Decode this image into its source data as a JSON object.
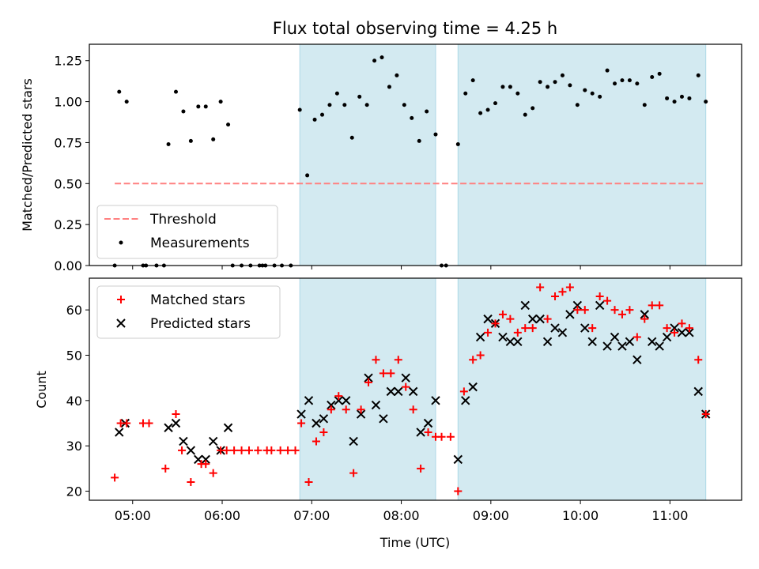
{
  "chart_data": {
    "type": "scatter",
    "title": "Flux total observing time = 4.25 h",
    "xlabel": "Time (UTC)",
    "x_ticks": [
      "05:00",
      "06:00",
      "07:00",
      "08:00",
      "09:00",
      "10:00",
      "11:00"
    ],
    "x_range": [
      "04:31",
      "11:48"
    ],
    "shaded_intervals": [
      [
        "06:52",
        "08:23"
      ],
      [
        "08:38",
        "11:24"
      ]
    ],
    "shade_color": "#d3eaf1",
    "top": {
      "ylabel": "Matched/Predicted stars",
      "ylim": [
        0,
        1.35
      ],
      "y_ticks": [
        "0.00",
        "0.25",
        "0.50",
        "0.75",
        "1.00",
        "1.25"
      ],
      "threshold": {
        "label": "Threshold",
        "value": 0.5,
        "color": "#ff8080",
        "from": "04:48",
        "to": "11:24"
      },
      "measurements_label": "Measurements",
      "measurements": [
        [
          "04:48",
          0
        ],
        [
          "04:51",
          1.06
        ],
        [
          "04:56",
          1.0
        ],
        [
          "05:07",
          0
        ],
        [
          "05:09",
          0
        ],
        [
          "05:16",
          0
        ],
        [
          "05:21",
          0
        ],
        [
          "05:24",
          0.74
        ],
        [
          "05:29",
          1.06
        ],
        [
          "05:34",
          0.94
        ],
        [
          "05:39",
          0.76
        ],
        [
          "05:44",
          0.97
        ],
        [
          "05:49",
          0.97
        ],
        [
          "05:54",
          0.77
        ],
        [
          "05:59",
          1.0
        ],
        [
          "06:04",
          0.86
        ],
        [
          "06:07",
          0
        ],
        [
          "06:13",
          0
        ],
        [
          "06:19",
          0
        ],
        [
          "06:25",
          0
        ],
        [
          "06:27",
          0
        ],
        [
          "06:29",
          0
        ],
        [
          "06:35",
          0
        ],
        [
          "06:40",
          0
        ],
        [
          "06:46",
          0
        ],
        [
          "06:52",
          0.95
        ],
        [
          "06:57",
          0.55
        ],
        [
          "07:02",
          0.89
        ],
        [
          "07:07",
          0.92
        ],
        [
          "07:12",
          0.98
        ],
        [
          "07:17",
          1.05
        ],
        [
          "07:22",
          0.98
        ],
        [
          "07:27",
          0.78
        ],
        [
          "07:32",
          1.03
        ],
        [
          "07:37",
          0.98
        ],
        [
          "07:42",
          1.25
        ],
        [
          "07:47",
          1.27
        ],
        [
          "07:52",
          1.09
        ],
        [
          "07:57",
          1.16
        ],
        [
          "08:02",
          0.98
        ],
        [
          "08:07",
          0.9
        ],
        [
          "08:12",
          0.76
        ],
        [
          "08:17",
          0.94
        ],
        [
          "08:23",
          0.8
        ],
        [
          "08:27",
          0
        ],
        [
          "08:30",
          0
        ],
        [
          "08:38",
          0.74
        ],
        [
          "08:43",
          1.05
        ],
        [
          "08:48",
          1.13
        ],
        [
          "08:53",
          0.93
        ],
        [
          "08:58",
          0.95
        ],
        [
          "09:03",
          0.99
        ],
        [
          "09:08",
          1.09
        ],
        [
          "09:13",
          1.09
        ],
        [
          "09:18",
          1.05
        ],
        [
          "09:23",
          0.92
        ],
        [
          "09:28",
          0.96
        ],
        [
          "09:33",
          1.12
        ],
        [
          "09:38",
          1.09
        ],
        [
          "09:43",
          1.12
        ],
        [
          "09:48",
          1.16
        ],
        [
          "09:53",
          1.1
        ],
        [
          "09:58",
          0.98
        ],
        [
          "10:03",
          1.07
        ],
        [
          "10:08",
          1.05
        ],
        [
          "10:13",
          1.03
        ],
        [
          "10:18",
          1.19
        ],
        [
          "10:23",
          1.11
        ],
        [
          "10:28",
          1.13
        ],
        [
          "10:33",
          1.13
        ],
        [
          "10:38",
          1.11
        ],
        [
          "10:43",
          0.98
        ],
        [
          "10:48",
          1.15
        ],
        [
          "10:53",
          1.17
        ],
        [
          "10:58",
          1.02
        ],
        [
          "11:03",
          1.0
        ],
        [
          "11:08",
          1.03
        ],
        [
          "11:13",
          1.02
        ],
        [
          "11:19",
          1.16
        ],
        [
          "11:24",
          1.0
        ]
      ]
    },
    "bottom": {
      "ylabel": "Count",
      "ylim": [
        18,
        67
      ],
      "y_ticks": [
        "20",
        "30",
        "40",
        "50",
        "60"
      ],
      "series": [
        {
          "name": "Matched stars",
          "marker": "+",
          "color": "#ff0000",
          "points": [
            [
              "04:48",
              23
            ],
            [
              "04:52",
              35
            ],
            [
              "04:56",
              35
            ],
            [
              "05:07",
              35
            ],
            [
              "05:11",
              35
            ],
            [
              "05:22",
              25
            ],
            [
              "05:29",
              37
            ],
            [
              "05:33",
              29
            ],
            [
              "05:39",
              22
            ],
            [
              "05:46",
              26
            ],
            [
              "05:49",
              26
            ],
            [
              "05:54",
              24
            ],
            [
              "05:59",
              29
            ],
            [
              "06:03",
              29
            ],
            [
              "06:08",
              29
            ],
            [
              "06:13",
              29
            ],
            [
              "06:18",
              29
            ],
            [
              "06:24",
              29
            ],
            [
              "06:30",
              29
            ],
            [
              "06:33",
              29
            ],
            [
              "06:39",
              29
            ],
            [
              "06:44",
              29
            ],
            [
              "06:49",
              29
            ],
            [
              "06:53",
              35
            ],
            [
              "06:58",
              22
            ],
            [
              "07:03",
              31
            ],
            [
              "07:08",
              33
            ],
            [
              "07:13",
              38
            ],
            [
              "07:18",
              41
            ],
            [
              "07:23",
              38
            ],
            [
              "07:28",
              24
            ],
            [
              "07:33",
              38
            ],
            [
              "07:38",
              44
            ],
            [
              "07:43",
              49
            ],
            [
              "07:48",
              46
            ],
            [
              "07:53",
              46
            ],
            [
              "07:58",
              49
            ],
            [
              "08:03",
              43
            ],
            [
              "08:08",
              38
            ],
            [
              "08:13",
              25
            ],
            [
              "08:18",
              33
            ],
            [
              "08:23",
              32
            ],
            [
              "08:27",
              32
            ],
            [
              "08:33",
              32
            ],
            [
              "08:38",
              20
            ],
            [
              "08:42",
              42
            ],
            [
              "08:48",
              49
            ],
            [
              "08:53",
              50
            ],
            [
              "08:58",
              55
            ],
            [
              "09:03",
              57
            ],
            [
              "09:08",
              59
            ],
            [
              "09:13",
              58
            ],
            [
              "09:18",
              55
            ],
            [
              "09:23",
              56
            ],
            [
              "09:28",
              56
            ],
            [
              "09:33",
              65
            ],
            [
              "09:38",
              58
            ],
            [
              "09:43",
              63
            ],
            [
              "09:48",
              64
            ],
            [
              "09:53",
              65
            ],
            [
              "09:58",
              60
            ],
            [
              "10:03",
              60
            ],
            [
              "10:08",
              56
            ],
            [
              "10:13",
              63
            ],
            [
              "10:18",
              62
            ],
            [
              "10:23",
              60
            ],
            [
              "10:28",
              59
            ],
            [
              "10:33",
              60
            ],
            [
              "10:38",
              54
            ],
            [
              "10:43",
              58
            ],
            [
              "10:48",
              61
            ],
            [
              "10:53",
              61
            ],
            [
              "10:58",
              56
            ],
            [
              "11:03",
              55
            ],
            [
              "11:08",
              57
            ],
            [
              "11:13",
              56
            ],
            [
              "11:19",
              49
            ],
            [
              "11:24",
              37
            ]
          ]
        },
        {
          "name": "Predicted stars",
          "marker": "x",
          "color": "#000000",
          "points": [
            [
              "04:51",
              33
            ],
            [
              "04:55",
              35
            ],
            [
              "05:24",
              34
            ],
            [
              "05:29",
              35
            ],
            [
              "05:34",
              31
            ],
            [
              "05:39",
              29
            ],
            [
              "05:44",
              27
            ],
            [
              "05:49",
              27
            ],
            [
              "05:54",
              31
            ],
            [
              "05:59",
              29
            ],
            [
              "06:04",
              34
            ],
            [
              "06:53",
              37
            ],
            [
              "06:58",
              40
            ],
            [
              "07:03",
              35
            ],
            [
              "07:08",
              36
            ],
            [
              "07:13",
              39
            ],
            [
              "07:18",
              40
            ],
            [
              "07:23",
              40
            ],
            [
              "07:28",
              31
            ],
            [
              "07:33",
              37
            ],
            [
              "07:38",
              45
            ],
            [
              "07:43",
              39
            ],
            [
              "07:48",
              36
            ],
            [
              "07:53",
              42
            ],
            [
              "07:58",
              42
            ],
            [
              "08:03",
              45
            ],
            [
              "08:08",
              42
            ],
            [
              "08:13",
              33
            ],
            [
              "08:18",
              35
            ],
            [
              "08:23",
              40
            ],
            [
              "08:38",
              27
            ],
            [
              "08:43",
              40
            ],
            [
              "08:48",
              43
            ],
            [
              "08:53",
              54
            ],
            [
              "08:58",
              58
            ],
            [
              "09:03",
              57
            ],
            [
              "09:08",
              54
            ],
            [
              "09:13",
              53
            ],
            [
              "09:18",
              53
            ],
            [
              "09:23",
              61
            ],
            [
              "09:28",
              58
            ],
            [
              "09:33",
              58
            ],
            [
              "09:38",
              53
            ],
            [
              "09:43",
              56
            ],
            [
              "09:48",
              55
            ],
            [
              "09:53",
              59
            ],
            [
              "09:58",
              61
            ],
            [
              "10:03",
              56
            ],
            [
              "10:08",
              53
            ],
            [
              "10:13",
              61
            ],
            [
              "10:18",
              52
            ],
            [
              "10:23",
              54
            ],
            [
              "10:28",
              52
            ],
            [
              "10:33",
              53
            ],
            [
              "10:38",
              49
            ],
            [
              "10:43",
              59
            ],
            [
              "10:48",
              53
            ],
            [
              "10:53",
              52
            ],
            [
              "10:58",
              54
            ],
            [
              "11:03",
              56
            ],
            [
              "11:08",
              55
            ],
            [
              "11:13",
              55
            ],
            [
              "11:19",
              42
            ],
            [
              "11:24",
              37
            ]
          ]
        }
      ]
    }
  }
}
